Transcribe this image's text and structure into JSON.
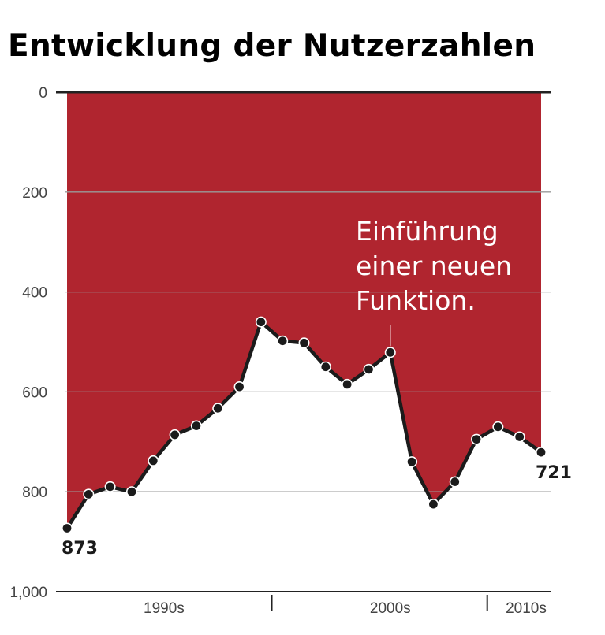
{
  "chart_data": {
    "type": "area",
    "title": "Entwicklung der Nutzerzahlen",
    "y_axis": {
      "inverted": true,
      "ylim": [
        0,
        1000
      ],
      "ticks": [
        0,
        200,
        400,
        600,
        800,
        1000
      ],
      "tick_labels": [
        "0",
        "200",
        "400",
        "600",
        "800",
        "1,000"
      ],
      "grid": true
    },
    "x_axis": {
      "categories": [
        "1990s",
        "2000s",
        "2010s"
      ],
      "category_point_ranges": [
        [
          0,
          9
        ],
        [
          10,
          20
        ],
        [
          20,
          23
        ]
      ]
    },
    "series": [
      {
        "values": [
          873,
          805,
          790,
          800,
          738,
          686,
          668,
          633,
          590,
          460,
          498,
          502,
          550,
          585,
          555,
          521,
          740,
          825,
          780,
          695,
          670,
          690,
          721
        ]
      }
    ],
    "end_labels": {
      "first": "873",
      "last": "721"
    },
    "annotation": {
      "lines": [
        "Einführung",
        "einer neuen",
        "Funktion."
      ],
      "point_index": 15
    },
    "colors": {
      "fill": "#b0252f",
      "line": "#1b1b1b",
      "marker_stroke": "#ffffff",
      "gridline": "#9a9a9a",
      "axis": "#222222",
      "annotation_text": "#ffffff"
    }
  }
}
